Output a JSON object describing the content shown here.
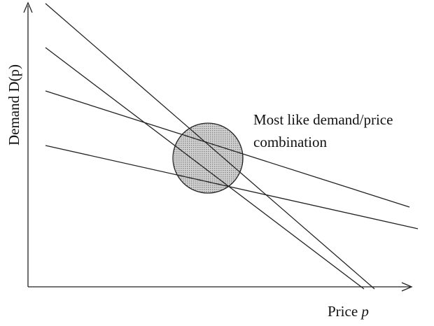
{
  "axes": {
    "y_label": "Demand D(p)",
    "x_label": {
      "text": "Price",
      "variable": "p"
    }
  },
  "annotation": {
    "lines": [
      "Most like demand/price",
      "combination"
    ]
  }
}
